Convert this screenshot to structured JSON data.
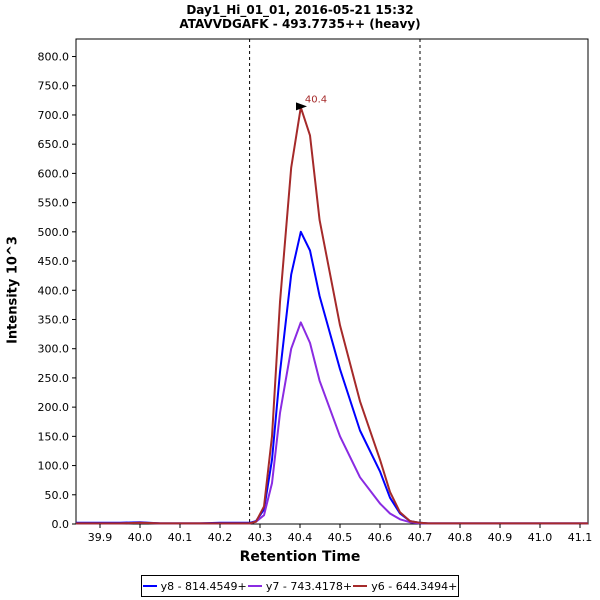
{
  "chart_data": {
    "type": "line",
    "title": "Day1_Hi_01_01, 2016-05-21 15:32",
    "subtitle": "ATAVVDGAFK - 493.7735++ (heavy)",
    "xlabel": "Retention Time",
    "ylabel": "Intensity 10^3",
    "xlim": [
      39.84,
      41.12
    ],
    "ylim": [
      0,
      830
    ],
    "x_ticks": [
      "39.9",
      "40.0",
      "40.1",
      "40.2",
      "40.3",
      "40.4",
      "40.5",
      "40.6",
      "40.7",
      "40.8",
      "40.9",
      "41.0",
      "41.1"
    ],
    "y_ticks": [
      "0.0",
      "50.0",
      "100.0",
      "150.0",
      "200.0",
      "250.0",
      "300.0",
      "350.0",
      "400.0",
      "450.0",
      "500.0",
      "550.0",
      "600.0",
      "650.0",
      "700.0",
      "750.0",
      "800.0"
    ],
    "integration_boundaries": [
      40.274,
      40.7
    ],
    "peak_annotation": {
      "label": "40.4",
      "x": 40.425,
      "y": 713
    },
    "legend_position": "bottom",
    "series": [
      {
        "name": "y8 - 814.4549+",
        "color": "#0000ff",
        "x": [
          39.84,
          39.9,
          39.95,
          40.0,
          40.05,
          40.1,
          40.15,
          40.2,
          40.23,
          40.25,
          40.274,
          40.29,
          40.31,
          40.33,
          40.35,
          40.378,
          40.402,
          40.425,
          40.449,
          40.5,
          40.55,
          40.6,
          40.625,
          40.65,
          40.675,
          40.7,
          40.72,
          40.8,
          40.9,
          41.0,
          41.12
        ],
        "values": [
          2,
          2,
          2,
          3,
          1,
          1,
          1,
          2,
          2,
          2,
          2,
          5,
          25,
          110,
          260,
          427,
          500,
          468,
          390,
          265,
          160,
          90,
          45,
          18,
          5,
          2,
          1,
          1,
          1,
          1,
          1
        ]
      },
      {
        "name": "y7 - 743.4178+",
        "color": "#8a2be2",
        "x": [
          39.84,
          39.9,
          39.95,
          40.0,
          40.05,
          40.1,
          40.15,
          40.2,
          40.23,
          40.25,
          40.274,
          40.29,
          40.31,
          40.33,
          40.35,
          40.378,
          40.402,
          40.425,
          40.449,
          40.5,
          40.55,
          40.6,
          40.625,
          40.65,
          40.675,
          40.7,
          40.72,
          40.8,
          40.9,
          41.0,
          41.12
        ],
        "values": [
          1,
          1,
          1,
          2,
          1,
          1,
          1,
          1,
          1,
          1,
          1,
          4,
          15,
          70,
          190,
          300,
          345,
          310,
          245,
          150,
          80,
          35,
          18,
          8,
          3,
          1,
          1,
          1,
          1,
          1,
          1
        ]
      },
      {
        "name": "y6 - 644.3494+",
        "color": "#a52a2a",
        "x": [
          39.84,
          39.9,
          39.95,
          40.0,
          40.05,
          40.1,
          40.15,
          40.2,
          40.23,
          40.25,
          40.274,
          40.29,
          40.31,
          40.33,
          40.35,
          40.378,
          40.402,
          40.425,
          40.449,
          40.5,
          40.55,
          40.6,
          40.625,
          40.65,
          40.675,
          40.7,
          40.72,
          40.8,
          40.9,
          41.0,
          41.12
        ],
        "values": [
          1,
          1,
          1,
          2,
          1,
          1,
          1,
          1,
          1,
          1,
          1,
          4,
          30,
          150,
          380,
          610,
          713,
          665,
          520,
          340,
          210,
          110,
          55,
          20,
          5,
          2,
          1,
          1,
          1,
          1,
          1
        ]
      }
    ]
  }
}
